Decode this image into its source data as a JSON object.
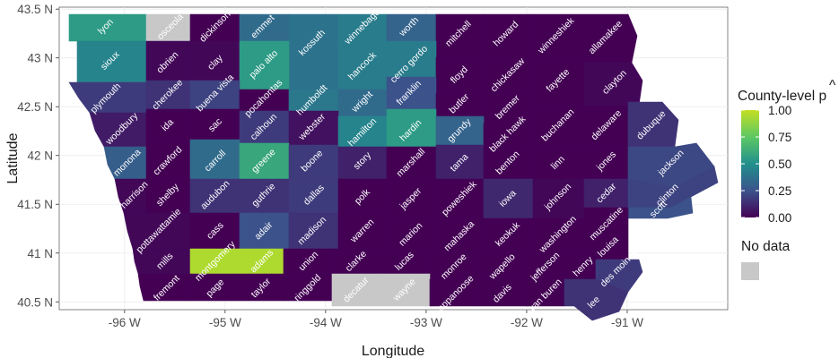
{
  "axes": {
    "xlabel": "Longitude",
    "ylabel": "Latitude",
    "x_ticks": [
      {
        "value": -96,
        "label": "-96 W"
      },
      {
        "value": -95,
        "label": "-95 W"
      },
      {
        "value": -94,
        "label": "-94 W"
      },
      {
        "value": -93,
        "label": "-93 W"
      },
      {
        "value": -92,
        "label": "-92 W"
      },
      {
        "value": -91,
        "label": "-91 W"
      }
    ],
    "y_ticks": [
      {
        "value": 43.5,
        "label": "43.5 N"
      },
      {
        "value": 43.0,
        "label": "43 N"
      },
      {
        "value": 42.5,
        "label": "42.5 N"
      },
      {
        "value": 42.0,
        "label": "42 N"
      },
      {
        "value": 41.5,
        "label": "41.5 N"
      },
      {
        "value": 41.0,
        "label": "41 N"
      },
      {
        "value": 40.5,
        "label": "40.5 N"
      }
    ],
    "xlim": [
      -96.65,
      -90.0
    ],
    "ylim": [
      40.42,
      43.52
    ]
  },
  "legend": {
    "title_main": "County-level ",
    "title_symbol": "p",
    "title_hat": "^",
    "ticks": [
      {
        "value": 1.0,
        "label": "1.00"
      },
      {
        "value": 0.75,
        "label": "0.75"
      },
      {
        "value": 0.5,
        "label": "0.50"
      },
      {
        "value": 0.25,
        "label": "0.25"
      },
      {
        "value": 0.0,
        "label": "0.00"
      }
    ],
    "no_data_label": "No data",
    "no_data_color": "#c8c8c8",
    "colors": [
      "#440154",
      "#3b528b",
      "#21908d",
      "#5dc863",
      "#c2df23"
    ]
  },
  "counties": [
    {
      "name": "lyon",
      "p": 0.55
    },
    {
      "name": "osceola",
      "p": null
    },
    {
      "name": "dickinson",
      "p": 0.0
    },
    {
      "name": "emmet",
      "p": 0.35
    },
    {
      "name": "kossuth",
      "p": 0.38
    },
    {
      "name": "winnebago",
      "p": 0.42
    },
    {
      "name": "worth",
      "p": 0.32
    },
    {
      "name": "mitchell",
      "p": 0.0
    },
    {
      "name": "howard",
      "p": 0.0
    },
    {
      "name": "winneshiek",
      "p": 0.0
    },
    {
      "name": "allamakee",
      "p": 0.0
    },
    {
      "name": "sioux",
      "p": 0.45
    },
    {
      "name": "obrien",
      "p": 0.02
    },
    {
      "name": "clay",
      "p": 0.02
    },
    {
      "name": "palo alto",
      "p": 0.55
    },
    {
      "name": "hancock",
      "p": 0.42
    },
    {
      "name": "cerro gordo",
      "p": 0.42
    },
    {
      "name": "floyd",
      "p": 0.0
    },
    {
      "name": "chickasaw",
      "p": 0.0
    },
    {
      "name": "fayette",
      "p": 0.0
    },
    {
      "name": "clayton",
      "p": 0.02
    },
    {
      "name": "plymouth",
      "p": 0.18
    },
    {
      "name": "cherokee",
      "p": 0.15
    },
    {
      "name": "buena vista",
      "p": 0.2
    },
    {
      "name": "pocahontas",
      "p": 0.0
    },
    {
      "name": "humboldt",
      "p": 0.4
    },
    {
      "name": "wright",
      "p": 0.35
    },
    {
      "name": "franklin",
      "p": 0.25
    },
    {
      "name": "butler",
      "p": 0.0
    },
    {
      "name": "bremer",
      "p": 0.0
    },
    {
      "name": "woodbury",
      "p": 0.08
    },
    {
      "name": "ida",
      "p": 0.0
    },
    {
      "name": "sac",
      "p": 0.0
    },
    {
      "name": "calhoun",
      "p": 0.18
    },
    {
      "name": "webster",
      "p": 0.05
    },
    {
      "name": "hamilton",
      "p": 0.45
    },
    {
      "name": "hardin",
      "p": 0.55
    },
    {
      "name": "grundy",
      "p": 0.32
    },
    {
      "name": "black hawk",
      "p": 0.0
    },
    {
      "name": "buchanan",
      "p": 0.0
    },
    {
      "name": "delaware",
      "p": 0.0
    },
    {
      "name": "dubuque",
      "p": 0.15
    },
    {
      "name": "monona",
      "p": 0.3
    },
    {
      "name": "crawford",
      "p": 0.0
    },
    {
      "name": "carroll",
      "p": 0.35
    },
    {
      "name": "greene",
      "p": 0.6
    },
    {
      "name": "boone",
      "p": 0.18
    },
    {
      "name": "story",
      "p": 0.1
    },
    {
      "name": "marshall",
      "p": 0.0
    },
    {
      "name": "tama",
      "p": 0.1
    },
    {
      "name": "benton",
      "p": 0.0
    },
    {
      "name": "linn",
      "p": 0.0
    },
    {
      "name": "jones",
      "p": 0.0
    },
    {
      "name": "jackson",
      "p": 0.22
    },
    {
      "name": "harrison",
      "p": 0.02
    },
    {
      "name": "shelby",
      "p": 0.0
    },
    {
      "name": "audubon",
      "p": 0.15
    },
    {
      "name": "guthrie",
      "p": 0.15
    },
    {
      "name": "dallas",
      "p": 0.18
    },
    {
      "name": "polk",
      "p": 0.0
    },
    {
      "name": "jasper",
      "p": 0.0
    },
    {
      "name": "poweshiek",
      "p": 0.0
    },
    {
      "name": "iowa",
      "p": 0.12
    },
    {
      "name": "johnson",
      "p": 0.02
    },
    {
      "name": "cedar",
      "p": 0.1
    },
    {
      "name": "clinton",
      "p": 0.2
    },
    {
      "name": "scott",
      "p": 0.25
    },
    {
      "name": "pottawattamie",
      "p": 0.02
    },
    {
      "name": "cass",
      "p": 0.0
    },
    {
      "name": "adair",
      "p": 0.25
    },
    {
      "name": "madison",
      "p": 0.15
    },
    {
      "name": "warren",
      "p": 0.0
    },
    {
      "name": "marion",
      "p": 0.0
    },
    {
      "name": "mahaska",
      "p": 0.0
    },
    {
      "name": "keokuk",
      "p": 0.0
    },
    {
      "name": "washington",
      "p": 0.0
    },
    {
      "name": "muscatine",
      "p": 0.0
    },
    {
      "name": "louisa",
      "p": 0.0
    },
    {
      "name": "mills",
      "p": 0.02
    },
    {
      "name": "montgomery",
      "p": 0.95
    },
    {
      "name": "adams",
      "p": 0.95
    },
    {
      "name": "union",
      "p": 0.0
    },
    {
      "name": "clarke",
      "p": 0.0
    },
    {
      "name": "lucas",
      "p": 0.0
    },
    {
      "name": "monroe",
      "p": 0.0
    },
    {
      "name": "wapello",
      "p": 0.0
    },
    {
      "name": "jefferson",
      "p": 0.0
    },
    {
      "name": "henry",
      "p": 0.0
    },
    {
      "name": "des moines",
      "p": 0.18
    },
    {
      "name": "fremont",
      "p": 0.0
    },
    {
      "name": "page",
      "p": 0.0
    },
    {
      "name": "taylor",
      "p": 0.0
    },
    {
      "name": "ringgold",
      "p": 0.0
    },
    {
      "name": "decatur",
      "p": null
    },
    {
      "name": "wayne",
      "p": null
    },
    {
      "name": "appanoose",
      "p": 0.0
    },
    {
      "name": "davis",
      "p": 0.0
    },
    {
      "name": "van buren",
      "p": 0.0
    },
    {
      "name": "lee",
      "p": 0.15
    }
  ]
}
